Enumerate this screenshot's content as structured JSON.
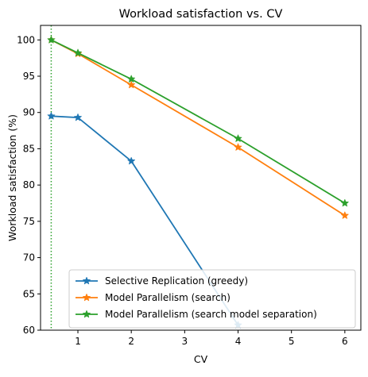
{
  "chart_data": {
    "type": "line",
    "title": "Workload satisfaction vs. CV",
    "xlabel": "CV",
    "ylabel": "Workload satisfaction (%)",
    "xlim": [
      0.3,
      6.3
    ],
    "ylim": [
      60,
      102
    ],
    "xticks": [
      1,
      2,
      3,
      4,
      5,
      6
    ],
    "yticks": [
      60,
      65,
      70,
      75,
      80,
      85,
      90,
      95,
      100
    ],
    "vline": {
      "x": 0.5,
      "color": "#2ca02c",
      "style": "dotted"
    },
    "legend_position": "bottom-right",
    "grid": false,
    "series": [
      {
        "name": "Selective Replication (greedy)",
        "color": "#1f77b4",
        "marker": "star",
        "x": [
          0.5,
          1,
          2,
          4
        ],
        "y": [
          89.5,
          89.3,
          83.3,
          60.7
        ]
      },
      {
        "name": "Model Parallelism (search)",
        "color": "#ff7f0e",
        "marker": "star",
        "x": [
          0.5,
          1,
          2,
          4,
          6
        ],
        "y": [
          100.0,
          98.1,
          93.8,
          85.2,
          75.8
        ]
      },
      {
        "name": "Model Parallelism (search model separation)",
        "color": "#2ca02c",
        "marker": "star",
        "x": [
          0.5,
          1,
          2,
          4,
          6
        ],
        "y": [
          100.0,
          98.2,
          94.6,
          86.4,
          77.5
        ]
      }
    ]
  }
}
